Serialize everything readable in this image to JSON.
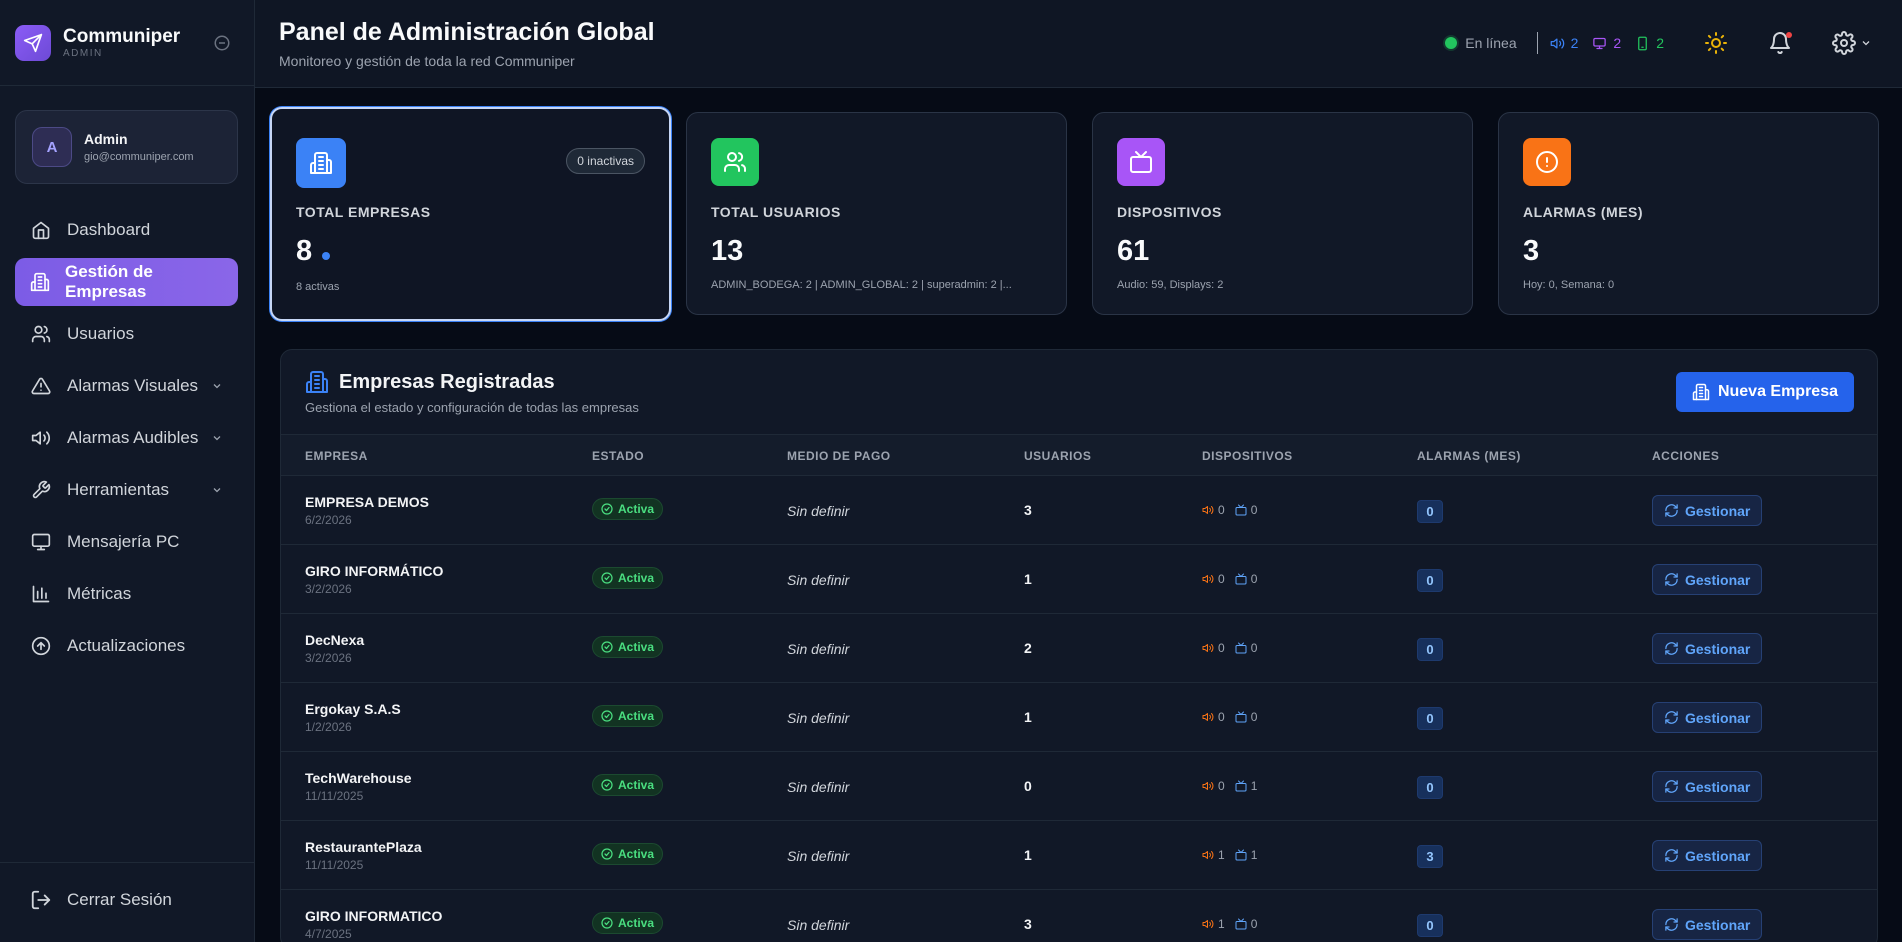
{
  "brand": {
    "name": "Communiper",
    "sub": "ADMIN"
  },
  "user": {
    "initial": "A",
    "name": "Admin",
    "email": "gio@communiper.com"
  },
  "nav": [
    {
      "label": "Dashboard",
      "icon": "home-icon",
      "active": false,
      "expandable": false
    },
    {
      "label": "Gestión de Empresas",
      "icon": "building-icon",
      "active": true,
      "expandable": false
    },
    {
      "label": "Usuarios",
      "icon": "users-icon",
      "active": false,
      "expandable": false
    },
    {
      "label": "Alarmas Visuales",
      "icon": "warning-triangle-icon",
      "active": false,
      "expandable": true
    },
    {
      "label": "Alarmas Audibles",
      "icon": "speaker-icon",
      "active": false,
      "expandable": true
    },
    {
      "label": "Herramientas",
      "icon": "wrench-icon",
      "active": false,
      "expandable": true
    },
    {
      "label": "Mensajería PC",
      "icon": "monitor-icon",
      "active": false,
      "expandable": false
    },
    {
      "label": "Métricas",
      "icon": "bar-chart-icon",
      "active": false,
      "expandable": false
    },
    {
      "label": "Actualizaciones",
      "icon": "arrow-up-circle-icon",
      "active": false,
      "expandable": false
    }
  ],
  "logout_label": "Cerrar Sesión",
  "header": {
    "title": "Panel de Administración Global",
    "subtitle": "Monitoreo y gestión de toda la red Communiper",
    "status": "En línea",
    "counts": {
      "audio": "2",
      "display": "2",
      "mobile": "2"
    }
  },
  "cards": [
    {
      "label": "TOTAL EMPRESAS",
      "value": "8",
      "sub": "8 activas",
      "badge": "0 inactivas",
      "icon": "building-icon",
      "color": "#3b82f6"
    },
    {
      "label": "TOTAL USUARIOS",
      "value": "13",
      "sub": "ADMIN_BODEGA: 2 | ADMIN_GLOBAL: 2 | superadmin: 2 |...",
      "icon": "users-icon",
      "color": "#22c55e"
    },
    {
      "label": "DISPOSITIVOS",
      "value": "61",
      "sub": "Audio: 59, Displays: 2",
      "icon": "tv-icon",
      "color": "#a855f7"
    },
    {
      "label": "ALARMAS (MES)",
      "value": "3",
      "sub": "Hoy: 0, Semana: 0",
      "icon": "alert-circle-icon",
      "color": "#f97316"
    }
  ],
  "panel": {
    "title": "Empresas Registradas",
    "subtitle": "Gestiona el estado y configuración de todas las empresas",
    "new_button": "Nueva Empresa"
  },
  "table": {
    "headers": [
      "EMPRESA",
      "ESTADO",
      "MEDIO DE PAGO",
      "USUARIOS",
      "DISPOSITIVOS",
      "ALARMAS (MES)",
      "ACCIONES"
    ],
    "rows": [
      {
        "name": "EMPRESA DEMOS",
        "date": "6/2/2026",
        "status": "Activa",
        "payment": "Sin definir",
        "users": "3",
        "audio": "0",
        "display": "0",
        "alarms": "0",
        "action": "Gestionar"
      },
      {
        "name": "GIRO INFORMÁTICO",
        "date": "3/2/2026",
        "status": "Activa",
        "payment": "Sin definir",
        "users": "1",
        "audio": "0",
        "display": "0",
        "alarms": "0",
        "action": "Gestionar"
      },
      {
        "name": "DecNexa",
        "date": "3/2/2026",
        "status": "Activa",
        "payment": "Sin definir",
        "users": "2",
        "audio": "0",
        "display": "0",
        "alarms": "0",
        "action": "Gestionar"
      },
      {
        "name": "Ergokay S.A.S",
        "date": "1/2/2026",
        "status": "Activa",
        "payment": "Sin definir",
        "users": "1",
        "audio": "0",
        "display": "0",
        "alarms": "0",
        "action": "Gestionar"
      },
      {
        "name": "TechWarehouse",
        "date": "11/11/2025",
        "status": "Activa",
        "payment": "Sin definir",
        "users": "0",
        "audio": "0",
        "display": "1",
        "alarms": "0",
        "action": "Gestionar"
      },
      {
        "name": "RestaurantePlaza",
        "date": "11/11/2025",
        "status": "Activa",
        "payment": "Sin definir",
        "users": "1",
        "audio": "1",
        "display": "1",
        "alarms": "3",
        "action": "Gestionar"
      },
      {
        "name": "GIRO INFORMATICO",
        "date": "4/7/2025",
        "status": "Activa",
        "payment": "Sin definir",
        "users": "3",
        "audio": "1",
        "display": "0",
        "alarms": "0",
        "action": "Gestionar"
      }
    ]
  }
}
